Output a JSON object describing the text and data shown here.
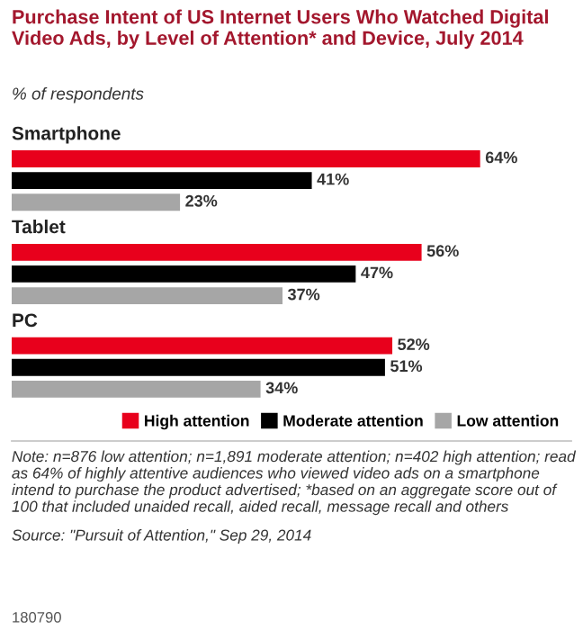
{
  "chart_data": {
    "type": "bar",
    "orientation": "horizontal",
    "title": "Purchase Intent of US Internet Users Who Watched Digital Video Ads, by Level of Attention* and Device, July 2014",
    "subtitle": "% of respondents",
    "categories": [
      "Smartphone",
      "Tablet",
      "PC"
    ],
    "series": [
      {
        "name": "High attention",
        "color": "#e8001c",
        "values": [
          64,
          56,
          52
        ],
        "value_labels": [
          "64%",
          "56%",
          "52%"
        ]
      },
      {
        "name": "Moderate attention",
        "color": "#000000",
        "values": [
          41,
          47,
          51
        ],
        "value_labels": [
          "41%",
          "47%",
          "51%"
        ]
      },
      {
        "name": "Low attention",
        "color": "#a6a6a6",
        "values": [
          23,
          37,
          34
        ],
        "value_labels": [
          "23%",
          "37%",
          "34%"
        ]
      }
    ],
    "legend": "bottom right",
    "annotations": [
      "Note: n=876 low attention; n=1,891 moderate attention; n=402 high attention; read as 64% of highly attentive audiences who viewed video ads on a smartphone intend to purchase the product advertised; *based on an aggregate score out of 100 that included unaided recall, aided recall, message recall and others",
      "Source: \"Pursuit of Attention,\" Sep 29, 2014",
      "180790"
    ]
  }
}
